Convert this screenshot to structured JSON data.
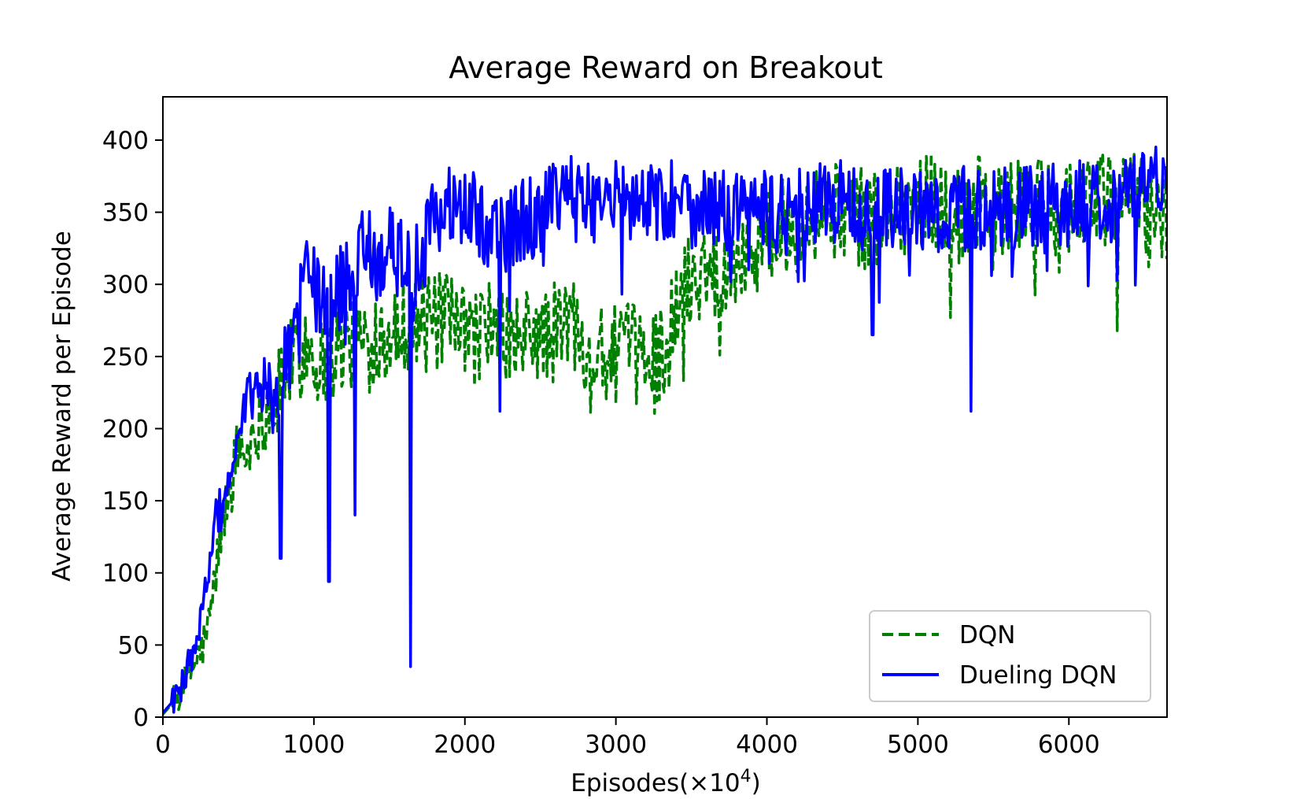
{
  "chart_data": {
    "type": "line",
    "title": "Average Reward on Breakout",
    "xlabel": "Episodes(×10",
    "xlabel_superscript": "4",
    "xlabel_suffix": ")",
    "ylabel": "Average Reward per Episode",
    "xlim": [
      0,
      6650
    ],
    "ylim": [
      0,
      430
    ],
    "xticks": [
      0,
      1000,
      2000,
      3000,
      4000,
      5000,
      6000
    ],
    "xtick_labels": [
      "0",
      "1000",
      "2000",
      "3000",
      "4000",
      "5000",
      "6000"
    ],
    "yticks": [
      0,
      50,
      100,
      150,
      200,
      250,
      300,
      350,
      400
    ],
    "ytick_labels": [
      "0",
      "50",
      "100",
      "150",
      "200",
      "250",
      "300",
      "350",
      "400"
    ],
    "grid": false,
    "legend_position": "lower-right",
    "series": [
      {
        "name": "DQN",
        "color": "#008000",
        "style": "dashed",
        "points": [
          [
            0,
            2
          ],
          [
            50,
            8
          ],
          [
            100,
            14
          ],
          [
            150,
            25
          ],
          [
            200,
            35
          ],
          [
            250,
            45
          ],
          [
            300,
            60
          ],
          [
            350,
            100
          ],
          [
            400,
            140
          ],
          [
            450,
            160
          ],
          [
            500,
            190
          ],
          [
            550,
            180
          ],
          [
            600,
            200
          ],
          [
            650,
            210
          ],
          [
            700,
            220
          ],
          [
            750,
            215
          ],
          [
            800,
            240
          ],
          [
            850,
            245
          ],
          [
            900,
            250
          ],
          [
            950,
            260
          ],
          [
            1000,
            255
          ],
          [
            1050,
            245
          ],
          [
            1100,
            250
          ],
          [
            1150,
            255
          ],
          [
            1200,
            262
          ],
          [
            1250,
            260
          ],
          [
            1300,
            258
          ],
          [
            1350,
            262
          ],
          [
            1400,
            265
          ],
          [
            1450,
            270
          ],
          [
            1500,
            268
          ],
          [
            1550,
            270
          ],
          [
            1600,
            275
          ],
          [
            1650,
            272
          ],
          [
            1700,
            275
          ],
          [
            1750,
            270
          ],
          [
            1800,
            272
          ],
          [
            1850,
            275
          ],
          [
            1900,
            270
          ],
          [
            1950,
            268
          ],
          [
            2000,
            265
          ],
          [
            2050,
            262
          ],
          [
            2100,
            268
          ],
          [
            2150,
            270
          ],
          [
            2200,
            272
          ],
          [
            2250,
            268
          ],
          [
            2300,
            262
          ],
          [
            2350,
            258
          ],
          [
            2400,
            262
          ],
          [
            2450,
            268
          ],
          [
            2500,
            264
          ],
          [
            2550,
            262
          ],
          [
            2600,
            268
          ],
          [
            2650,
            272
          ],
          [
            2700,
            275
          ],
          [
            2750,
            270
          ],
          [
            2800,
            262
          ],
          [
            2850,
            255
          ],
          [
            2900,
            250
          ],
          [
            2950,
            248
          ],
          [
            3000,
            252
          ],
          [
            3050,
            255
          ],
          [
            3100,
            252
          ],
          [
            3150,
            250
          ],
          [
            3200,
            248
          ],
          [
            3250,
            250
          ],
          [
            3300,
            255
          ],
          [
            3350,
            265
          ],
          [
            3400,
            280
          ],
          [
            3450,
            295
          ],
          [
            3500,
            305
          ],
          [
            3550,
            310
          ],
          [
            3600,
            312
          ],
          [
            3650,
            310
          ],
          [
            3700,
            315
          ],
          [
            3750,
            318
          ],
          [
            3800,
            320
          ],
          [
            3850,
            325
          ],
          [
            3900,
            328
          ],
          [
            3950,
            330
          ],
          [
            4000,
            332
          ],
          [
            4050,
            335
          ],
          [
            4100,
            338
          ],
          [
            4150,
            340
          ],
          [
            4200,
            342
          ],
          [
            4250,
            345
          ],
          [
            4300,
            348
          ],
          [
            4350,
            350
          ],
          [
            4400,
            352
          ],
          [
            4450,
            350
          ],
          [
            4500,
            352
          ],
          [
            4550,
            350
          ],
          [
            4600,
            348
          ],
          [
            4650,
            345
          ],
          [
            4700,
            347
          ],
          [
            4750,
            350
          ],
          [
            4800,
            352
          ],
          [
            4850,
            354
          ],
          [
            4900,
            355
          ],
          [
            4950,
            356
          ],
          [
            5000,
            357
          ],
          [
            5050,
            356
          ],
          [
            5100,
            358
          ],
          [
            5150,
            356
          ],
          [
            5200,
            350
          ],
          [
            5250,
            348
          ],
          [
            5300,
            350
          ],
          [
            5350,
            352
          ],
          [
            5400,
            354
          ],
          [
            5450,
            355
          ],
          [
            5500,
            352
          ],
          [
            5550,
            350
          ],
          [
            5600,
            352
          ],
          [
            5650,
            355
          ],
          [
            5700,
            356
          ],
          [
            5750,
            354
          ],
          [
            5800,
            352
          ],
          [
            5850,
            353
          ],
          [
            5900,
            355
          ],
          [
            5950,
            356
          ],
          [
            6000,
            355
          ],
          [
            6050,
            356
          ],
          [
            6100,
            358
          ],
          [
            6150,
            360
          ],
          [
            6200,
            358
          ],
          [
            6250,
            356
          ],
          [
            6300,
            355
          ],
          [
            6350,
            357
          ],
          [
            6400,
            358
          ],
          [
            6450,
            360
          ],
          [
            6500,
            356
          ],
          [
            6550,
            352
          ],
          [
            6600,
            350
          ],
          [
            6650,
            348
          ]
        ],
        "noise": 35
      },
      {
        "name": "Dueling DQN",
        "color": "#0000ff",
        "style": "solid",
        "points": [
          [
            0,
            3
          ],
          [
            50,
            9
          ],
          [
            100,
            15
          ],
          [
            150,
            30
          ],
          [
            200,
            45
          ],
          [
            250,
            65
          ],
          [
            300,
            100
          ],
          [
            350,
            135
          ],
          [
            400,
            150
          ],
          [
            450,
            170
          ],
          [
            500,
            185
          ],
          [
            550,
            215
          ],
          [
            600,
            230
          ],
          [
            650,
            225
          ],
          [
            700,
            230
          ],
          [
            750,
            215
          ],
          [
            800,
            240
          ],
          [
            850,
            260
          ],
          [
            900,
            275
          ],
          [
            950,
            330
          ],
          [
            1000,
            300
          ],
          [
            1050,
            285
          ],
          [
            1100,
            280
          ],
          [
            1150,
            290
          ],
          [
            1200,
            305
          ],
          [
            1250,
            310
          ],
          [
            1300,
            320
          ],
          [
            1350,
            325
          ],
          [
            1400,
            318
          ],
          [
            1450,
            320
          ],
          [
            1500,
            325
          ],
          [
            1550,
            322
          ],
          [
            1600,
            318
          ],
          [
            1650,
            300
          ],
          [
            1700,
            320
          ],
          [
            1750,
            330
          ],
          [
            1800,
            345
          ],
          [
            1850,
            350
          ],
          [
            1900,
            355
          ],
          [
            1950,
            352
          ],
          [
            2000,
            350
          ],
          [
            2050,
            348
          ],
          [
            2100,
            345
          ],
          [
            2150,
            342
          ],
          [
            2200,
            340
          ],
          [
            2250,
            335
          ],
          [
            2300,
            338
          ],
          [
            2350,
            342
          ],
          [
            2400,
            345
          ],
          [
            2450,
            348
          ],
          [
            2500,
            350
          ],
          [
            2550,
            352
          ],
          [
            2600,
            355
          ],
          [
            2650,
            358
          ],
          [
            2700,
            360
          ],
          [
            2750,
            358
          ],
          [
            2800,
            357
          ],
          [
            2850,
            358
          ],
          [
            2900,
            360
          ],
          [
            2950,
            358
          ],
          [
            3000,
            357
          ],
          [
            3050,
            355
          ],
          [
            3100,
            356
          ],
          [
            3150,
            358
          ],
          [
            3200,
            360
          ],
          [
            3250,
            358
          ],
          [
            3300,
            356
          ],
          [
            3350,
            358
          ],
          [
            3400,
            360
          ],
          [
            3450,
            357
          ],
          [
            3500,
            355
          ],
          [
            3550,
            356
          ],
          [
            3600,
            354
          ],
          [
            3650,
            352
          ],
          [
            3700,
            350
          ],
          [
            3750,
            352
          ],
          [
            3800,
            354
          ],
          [
            3850,
            355
          ],
          [
            3900,
            352
          ],
          [
            3950,
            350
          ],
          [
            4000,
            352
          ],
          [
            4050,
            350
          ],
          [
            4100,
            348
          ],
          [
            4150,
            350
          ],
          [
            4200,
            352
          ],
          [
            4250,
            354
          ],
          [
            4300,
            356
          ],
          [
            4350,
            358
          ],
          [
            4400,
            360
          ],
          [
            4450,
            358
          ],
          [
            4500,
            356
          ],
          [
            4550,
            355
          ],
          [
            4600,
            352
          ],
          [
            4650,
            350
          ],
          [
            4700,
            345
          ],
          [
            4750,
            350
          ],
          [
            4800,
            352
          ],
          [
            4850,
            355
          ],
          [
            4900,
            356
          ],
          [
            4950,
            354
          ],
          [
            5000,
            352
          ],
          [
            5050,
            350
          ],
          [
            5100,
            352
          ],
          [
            5150,
            350
          ],
          [
            5200,
            348
          ],
          [
            5250,
            350
          ],
          [
            5300,
            352
          ],
          [
            5350,
            350
          ],
          [
            5400,
            352
          ],
          [
            5450,
            354
          ],
          [
            5500,
            355
          ],
          [
            5550,
            352
          ],
          [
            5600,
            350
          ],
          [
            5650,
            352
          ],
          [
            5700,
            354
          ],
          [
            5750,
            352
          ],
          [
            5800,
            350
          ],
          [
            5850,
            352
          ],
          [
            5900,
            354
          ],
          [
            5950,
            356
          ],
          [
            6000,
            355
          ],
          [
            6050,
            356
          ],
          [
            6100,
            358
          ],
          [
            6150,
            360
          ],
          [
            6200,
            362
          ],
          [
            6250,
            360
          ],
          [
            6300,
            358
          ],
          [
            6350,
            360
          ],
          [
            6400,
            362
          ],
          [
            6450,
            364
          ],
          [
            6500,
            365
          ],
          [
            6550,
            368
          ],
          [
            6600,
            372
          ],
          [
            6650,
            375
          ]
        ],
        "noise": 30,
        "dips": [
          [
            780,
            110
          ],
          [
            1100,
            94
          ],
          [
            1270,
            140
          ],
          [
            1640,
            35
          ],
          [
            2230,
            212
          ],
          [
            4700,
            265
          ],
          [
            5350,
            212
          ],
          [
            6320,
            303
          ]
        ]
      }
    ]
  }
}
